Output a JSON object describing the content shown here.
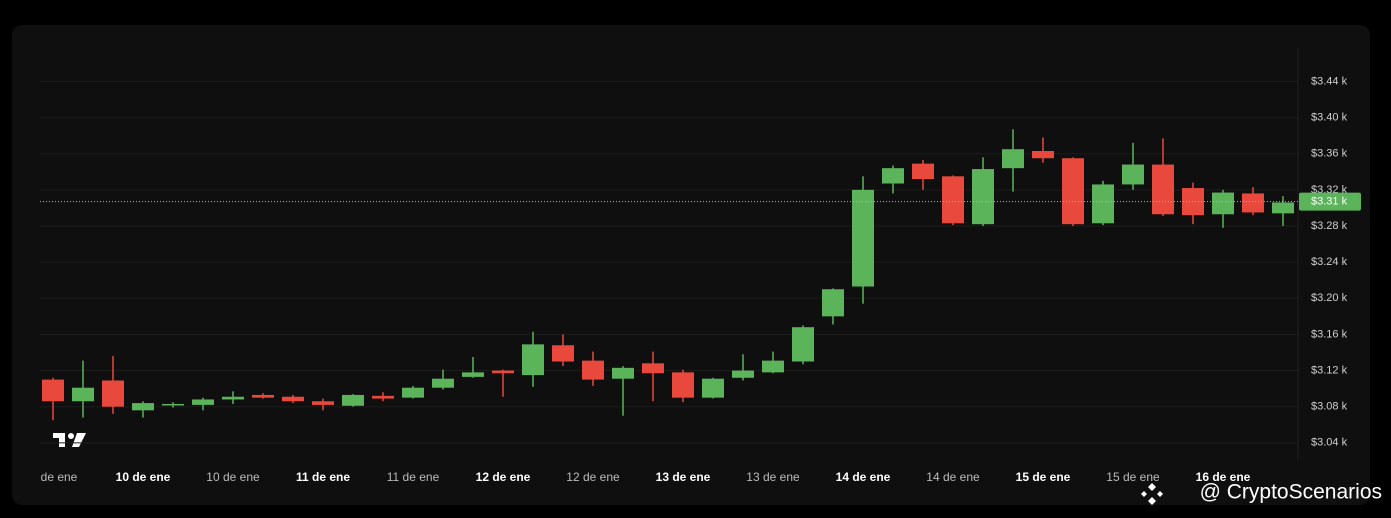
{
  "chart_data": {
    "type": "candlestick",
    "categories": [
      "de ene",
      null,
      null,
      "10 de ene",
      null,
      null,
      "10 de ene",
      null,
      null,
      "11 de ene",
      null,
      null,
      "11 de ene",
      null,
      null,
      "12 de ene",
      null,
      null,
      "12 de ene",
      null,
      null,
      "13 de ene",
      null,
      null,
      "13 de ene",
      null,
      null,
      "14 de ene",
      null,
      null,
      "14 de ene",
      null,
      null,
      "15 de ene",
      null,
      null,
      "15 de ene",
      null,
      null,
      "16 de ene",
      null,
      null
    ],
    "open": [
      3.11,
      3.086,
      3.109,
      3.076,
      3.082,
      3.082,
      3.088,
      3.093,
      3.091,
      3.086,
      3.081,
      3.092,
      3.09,
      3.101,
      3.113,
      3.12,
      3.115,
      3.148,
      3.131,
      3.111,
      3.128,
      3.118,
      3.09,
      3.112,
      3.118,
      3.13,
      3.18,
      3.213,
      3.327,
      3.349,
      3.335,
      3.282,
      3.344,
      3.363,
      3.355,
      3.283,
      3.326,
      3.348,
      3.322,
      3.293,
      3.316,
      3.294
    ],
    "high": [
      3.112,
      3.131,
      3.136,
      3.086,
      3.085,
      3.09,
      3.097,
      3.095,
      3.093,
      3.089,
      3.094,
      3.096,
      3.103,
      3.121,
      3.135,
      3.121,
      3.163,
      3.16,
      3.141,
      3.125,
      3.141,
      3.121,
      3.112,
      3.138,
      3.141,
      3.17,
      3.211,
      3.335,
      3.347,
      3.353,
      3.336,
      3.356,
      3.387,
      3.378,
      3.356,
      3.33,
      3.372,
      3.377,
      3.328,
      3.32,
      3.323,
      3.313
    ],
    "low": [
      3.065,
      3.068,
      3.072,
      3.068,
      3.079,
      3.076,
      3.083,
      3.089,
      3.084,
      3.076,
      3.08,
      3.086,
      3.089,
      3.099,
      3.112,
      3.091,
      3.102,
      3.125,
      3.103,
      3.07,
      3.086,
      3.085,
      3.089,
      3.109,
      3.117,
      3.127,
      3.171,
      3.194,
      3.316,
      3.32,
      3.281,
      3.28,
      3.318,
      3.35,
      3.28,
      3.281,
      3.32,
      3.291,
      3.282,
      3.278,
      3.292,
      3.28
    ],
    "close": [
      3.086,
      3.101,
      3.08,
      3.084,
      3.083,
      3.088,
      3.091,
      3.09,
      3.086,
      3.082,
      3.093,
      3.089,
      3.101,
      3.111,
      3.118,
      3.117,
      3.149,
      3.13,
      3.11,
      3.123,
      3.117,
      3.09,
      3.111,
      3.12,
      3.131,
      3.168,
      3.21,
      3.32,
      3.344,
      3.332,
      3.283,
      3.343,
      3.365,
      3.355,
      3.282,
      3.326,
      3.348,
      3.293,
      3.292,
      3.317,
      3.295,
      3.306
    ],
    "up_color": "#5bb35a",
    "down_color": "#e8493c",
    "ylim": [
      3.021,
      3.477
    ],
    "yticks": [
      {
        "value": 3.04,
        "label": "$3.04 k"
      },
      {
        "value": 3.08,
        "label": "$3.08 k"
      },
      {
        "value": 3.12,
        "label": "$3.12 k"
      },
      {
        "value": 3.16,
        "label": "$3.16 k"
      },
      {
        "value": 3.2,
        "label": "$3.20 k"
      },
      {
        "value": 3.24,
        "label": "$3.24 k"
      },
      {
        "value": 3.28,
        "label": "$3.28 k"
      },
      {
        "value": 3.32,
        "label": "$3.32 k"
      },
      {
        "value": 3.36,
        "label": "$3.36 k"
      },
      {
        "value": 3.4,
        "label": "$3.40 k"
      },
      {
        "value": 3.44,
        "label": "$3.44 k"
      }
    ],
    "grid": true,
    "last_price": {
      "value": 3.307,
      "label": "$3.31 k"
    }
  },
  "watermark": "@ CryptoScenarios"
}
